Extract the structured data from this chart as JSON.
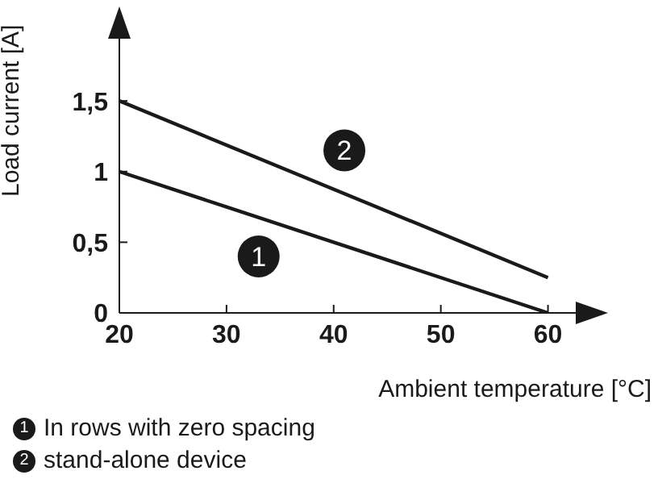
{
  "chart_data": {
    "type": "line",
    "xlabel": "Ambient temperature [°C]",
    "ylabel": "Load current [A]",
    "x": [
      20,
      60
    ],
    "series": [
      {
        "name": "In rows with zero spacing",
        "color": "#1a1a1a",
        "values": [
          1,
          0
        ]
      },
      {
        "name": "stand-alone device",
        "color": "#1a1a1a",
        "values": [
          1.5,
          0.25
        ]
      }
    ],
    "xlim": [
      20,
      65
    ],
    "xticks": [
      20,
      30,
      40,
      50,
      60
    ],
    "ylim": [
      0,
      2.1
    ],
    "yticks": [
      0,
      {
        "value": 0.5,
        "label": "0,5"
      },
      1,
      {
        "value": 1.5,
        "label": "1,5"
      }
    ],
    "annotations": [
      {
        "text": "1",
        "x": 33,
        "y": 0.4
      },
      {
        "text": "2",
        "x": 41,
        "y": 1.15
      }
    ],
    "grid": false,
    "legend": "bottom",
    "marker": "none",
    "line_style": "solid"
  }
}
